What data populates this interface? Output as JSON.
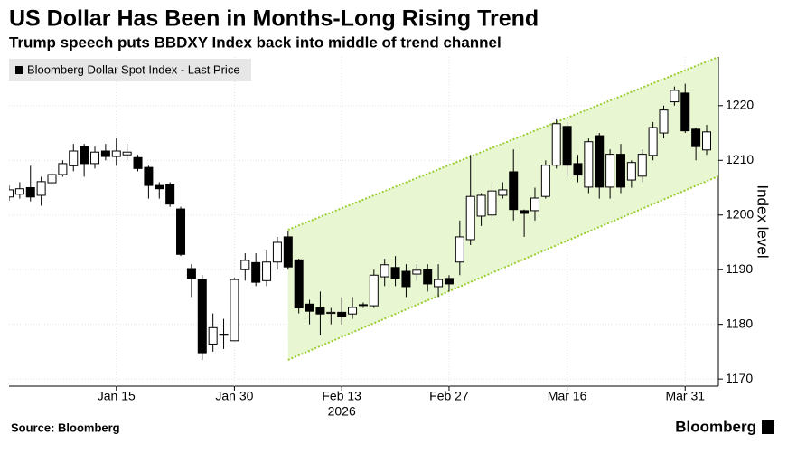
{
  "chart_data": {
    "type": "candlestick",
    "title": "US Dollar Has Been in Months-Long Rising Trend",
    "subtitle": "Trump speech puts BBDXY Index back into middle of trend channel",
    "y_label": "Index level",
    "x_label": "2026",
    "source": "Source: Bloomberg",
    "brand": "Bloomberg",
    "categories": [
      null,
      null,
      null,
      null,
      null,
      null,
      null,
      null,
      null,
      null,
      "Jan 15",
      null,
      null,
      null,
      null,
      null,
      null,
      null,
      null,
      null,
      null,
      "Jan 30",
      null,
      null,
      null,
      null,
      null,
      null,
      null,
      null,
      null,
      "Feb 13",
      null,
      null,
      null,
      null,
      null,
      null,
      null,
      null,
      null,
      "Feb 27",
      null,
      null,
      null,
      null,
      null,
      null,
      null,
      null,
      null,
      null,
      "Mar 16",
      null,
      null,
      null,
      null,
      null,
      null,
      null,
      null,
      null,
      null,
      "Mar 31",
      null,
      null
    ],
    "series": [
      {
        "name": "Bloomberg Dollar Spot Index - Last Price",
        "up_color": "#ffffff",
        "down_color": "#000000",
        "open": [
          1203.3,
          1203.8,
          1205,
          1203.6,
          1205.9,
          1207.4,
          1209,
          1212.5,
          1209.4,
          1211.7,
          1210.7,
          1211,
          1210.5,
          1208.7,
          1205.4,
          1205.5,
          1201.1,
          1190.2,
          1188.2,
          1176.4,
          1178.2,
          1177,
          1190,
          1191.3,
          1188,
          1191.4,
          1196,
          1191.8,
          1183.7,
          1183,
          1182,
          1182.2,
          1181.9,
          1183.5,
          1183.4,
          1188.7,
          1190.4,
          1189.7,
          1189.2,
          1190,
          1186.9,
          1188.4,
          1191.4,
          1195.5,
          1199.8,
          1200,
          1203.6,
          1207.9,
          1200.8,
          1200.8,
          1203.4,
          1209.1,
          1216.2,
          1209.4,
          1205.1,
          1214.5,
          1205.1,
          1211.1,
          1206.4,
          1207.1,
          1210.9,
          1215,
          1220.7,
          1222.3,
          1215.7,
          1211.9
        ],
        "high": [
          1205.4,
          1206,
          1209,
          1207,
          1208.5,
          1210,
          1213,
          1213,
          1212.5,
          1213,
          1214,
          1213,
          1211,
          1209,
          1206,
          1206,
          1201.5,
          1191,
          1189,
          1182,
          1181,
          1188.5,
          1193,
          1193,
          1193.5,
          1196,
          1197,
          1192,
          1184.5,
          1186,
          1183,
          1185,
          1185,
          1184,
          1190,
          1192,
          1192.5,
          1191,
          1191,
          1191,
          1191,
          1189,
          1199,
          1211,
          1204,
          1206,
          1206,
          1212,
          1201,
          1205,
          1210,
          1217.5,
          1217,
          1211,
          1214,
          1215,
          1212,
          1213,
          1210,
          1212,
          1217,
          1220,
          1223.5,
          1224,
          1216,
          1216.5
        ],
        "low": [
          1202.6,
          1203,
          1202.5,
          1201.7,
          1205,
          1207,
          1208,
          1207,
          1208.5,
          1210,
          1209,
          1210,
          1208,
          1203,
          1203,
          1201.5,
          1192.5,
          1185,
          1173.5,
          1175,
          1175.5,
          1177,
          1188,
          1187,
          1187,
          1190,
          1190,
          1182,
          1180,
          1178,
          1180,
          1180,
          1181,
          1183,
          1183,
          1187,
          1187,
          1185,
          1188,
          1186,
          1185,
          1186,
          1189,
          1194.5,
          1198,
          1199,
          1203,
          1199,
          1196,
          1199,
          1203,
          1208.5,
          1207,
          1206,
          1204,
          1203,
          1203,
          1204,
          1205,
          1206,
          1210,
          1214,
          1220,
          1215,
          1210,
          1211
        ],
        "close": [
          1204.6,
          1204.8,
          1203.3,
          1206.1,
          1207.4,
          1209.4,
          1211.7,
          1209.4,
          1211.5,
          1210.7,
          1211.7,
          1211.5,
          1208.5,
          1205.4,
          1204.8,
          1202,
          1192.8,
          1188.4,
          1174.8,
          1179.4,
          1178,
          1188.2,
          1191.7,
          1187.7,
          1191.4,
          1195,
          1190.5,
          1183,
          1182.4,
          1181.9,
          1182.2,
          1181.4,
          1183.1,
          1183.6,
          1189,
          1190.9,
          1188.4,
          1186.9,
          1189.9,
          1187.4,
          1188.2,
          1187.4,
          1196,
          1203.4,
          1203.6,
          1204.4,
          1204.6,
          1201,
          1200.3,
          1203.1,
          1209.1,
          1216.7,
          1209.1,
          1207.3,
          1213.4,
          1205.1,
          1211.1,
          1205.1,
          1209.6,
          1211.1,
          1216,
          1219.2,
          1222.8,
          1215.4,
          1212.5,
          1215.2
        ]
      }
    ],
    "channel": {
      "color": "#9acd32",
      "fill": "#e9f6d2",
      "x": [
        26,
        66.1
      ],
      "upper": [
        1197.3,
        1228.9
      ],
      "lower": [
        1173.5,
        1207.1
      ]
    },
    "ylim": [
      1168.7,
      1228.9
    ],
    "yticks": [
      1170,
      1180,
      1190,
      1200,
      1210,
      1220
    ],
    "grid": true
  }
}
